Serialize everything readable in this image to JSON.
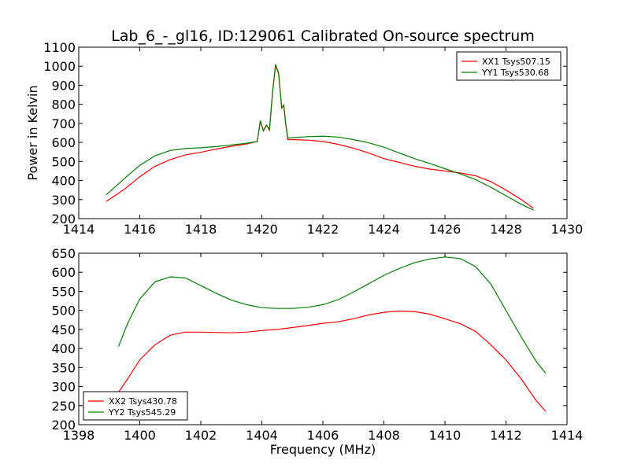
{
  "title": "Lab_6_-_gl16, ID:129061 Calibrated On-source spectrum",
  "chart_data": [
    {
      "type": "line",
      "ylabel": "Power in Kelvin",
      "xlabel": "",
      "xlim": [
        1414,
        1430
      ],
      "ylim": [
        200,
        1100
      ],
      "xticks": [
        "1414",
        "1416",
        "1418",
        "1420",
        "1422",
        "1424",
        "1426",
        "1428",
        "1430"
      ],
      "yticks": [
        "200",
        "300",
        "400",
        "500",
        "600",
        "700",
        "800",
        "900",
        "1000",
        "1100"
      ],
      "legend_position": "top-right",
      "series": [
        {
          "name": "XX1 Tsys507.15",
          "color": "#ff0000",
          "x": [
            1414.9,
            1415.5,
            1416,
            1416.5,
            1417,
            1417.5,
            1418,
            1418.5,
            1419,
            1419.5,
            1419.85,
            1419.95,
            1420.05,
            1420.15,
            1420.25,
            1420.35,
            1420.45,
            1420.55,
            1420.65,
            1420.72,
            1420.78,
            1420.85,
            1421,
            1421.5,
            1422,
            1422.5,
            1423,
            1423.5,
            1424,
            1424.5,
            1425,
            1425.5,
            1426,
            1426.5,
            1427,
            1427.5,
            1428,
            1428.5,
            1428.9
          ],
          "y": [
            290,
            355,
            420,
            475,
            510,
            535,
            548,
            565,
            580,
            592,
            605,
            710,
            660,
            690,
            665,
            860,
            1005,
            960,
            780,
            795,
            700,
            615,
            615,
            612,
            605,
            590,
            570,
            545,
            515,
            495,
            475,
            460,
            450,
            440,
            425,
            395,
            350,
            300,
            255
          ]
        },
        {
          "name": "YY1 Tsys530.68",
          "color": "#008000",
          "x": [
            1414.9,
            1415.5,
            1416,
            1416.5,
            1417,
            1417.5,
            1418,
            1418.5,
            1419,
            1419.5,
            1419.85,
            1419.95,
            1420.05,
            1420.15,
            1420.25,
            1420.35,
            1420.45,
            1420.55,
            1420.65,
            1420.72,
            1420.78,
            1420.85,
            1421,
            1421.5,
            1422,
            1422.5,
            1423,
            1423.5,
            1424,
            1424.5,
            1425,
            1425.5,
            1426,
            1426.5,
            1427,
            1427.5,
            1428,
            1428.5,
            1428.9
          ],
          "y": [
            325,
            410,
            480,
            530,
            558,
            568,
            572,
            578,
            587,
            596,
            605,
            715,
            662,
            692,
            668,
            865,
            1010,
            965,
            783,
            797,
            705,
            625,
            625,
            630,
            633,
            628,
            615,
            598,
            575,
            545,
            515,
            490,
            462,
            435,
            405,
            365,
            320,
            275,
            245
          ]
        }
      ]
    },
    {
      "type": "line",
      "ylabel": "",
      "xlabel": "Frequency (MHz)",
      "xlim": [
        1398,
        1414
      ],
      "ylim": [
        200,
        650
      ],
      "xticks": [
        "1398",
        "1400",
        "1402",
        "1404",
        "1406",
        "1408",
        "1410",
        "1412",
        "1414"
      ],
      "yticks": [
        "200",
        "250",
        "300",
        "350",
        "400",
        "450",
        "500",
        "550",
        "600",
        "650"
      ],
      "legend_position": "bottom-left",
      "series": [
        {
          "name": "XX2 Tsys430.78",
          "color": "#ff0000",
          "x": [
            1399.3,
            1399.6,
            1400,
            1400.5,
            1401,
            1401.5,
            1402,
            1402.5,
            1403,
            1403.5,
            1404,
            1404.5,
            1405,
            1405.5,
            1406,
            1406.5,
            1407,
            1407.5,
            1408,
            1408.5,
            1409,
            1409.5,
            1410,
            1410.5,
            1411,
            1411.5,
            1412,
            1412.5,
            1413,
            1413.3
          ],
          "y": [
            285,
            320,
            370,
            410,
            435,
            443,
            443,
            442,
            441,
            443,
            447,
            450,
            455,
            460,
            466,
            470,
            478,
            488,
            495,
            498,
            497,
            490,
            478,
            465,
            445,
            410,
            370,
            320,
            262,
            235
          ]
        },
        {
          "name": "YY2 Tsys545.29",
          "color": "#008000",
          "x": [
            1399.3,
            1399.6,
            1400,
            1400.5,
            1401,
            1401.5,
            1402,
            1402.5,
            1403,
            1403.5,
            1404,
            1404.5,
            1405,
            1405.5,
            1406,
            1406.5,
            1407,
            1407.5,
            1408,
            1408.5,
            1409,
            1409.5,
            1410,
            1410.5,
            1411,
            1411.5,
            1412,
            1412.5,
            1413,
            1413.3
          ],
          "y": [
            405,
            465,
            530,
            575,
            588,
            585,
            565,
            545,
            527,
            515,
            507,
            505,
            505,
            508,
            515,
            528,
            548,
            570,
            592,
            610,
            625,
            635,
            640,
            636,
            615,
            570,
            500,
            430,
            365,
            335
          ]
        }
      ]
    }
  ]
}
